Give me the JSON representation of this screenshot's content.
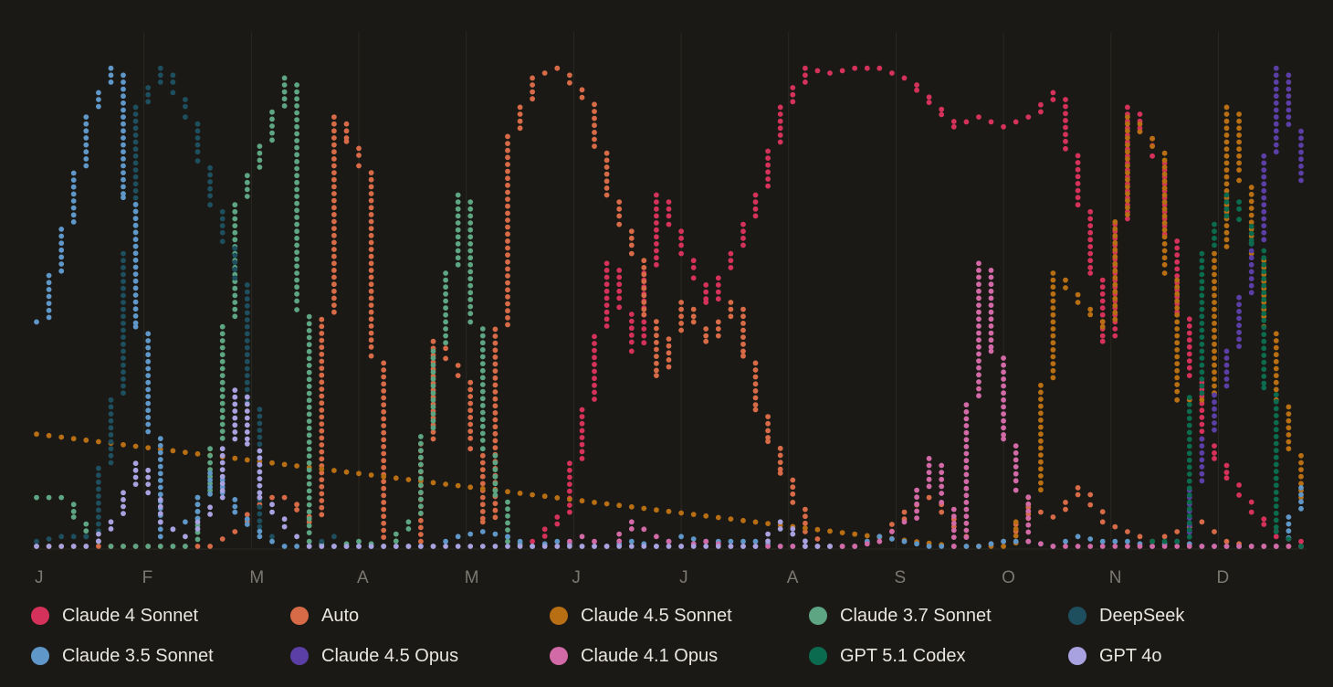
{
  "chart_data": {
    "type": "scatter",
    "title": "",
    "xlabel": "",
    "ylabel": "",
    "x_ticks": [
      "J",
      "F",
      "M",
      "A",
      "M",
      "J",
      "J",
      "A",
      "S",
      "O",
      "N",
      "D"
    ],
    "x_unit": "week of year (1-52)",
    "y_unit": "share (%)",
    "ylim": [
      0,
      100
    ],
    "grid": "vertical",
    "legend_position": "bottom",
    "series": [
      {
        "name": "Claude 4 Sonnet",
        "color": "#d4325a",
        "x": [
          21,
          22,
          23,
          24,
          25,
          26,
          27,
          28,
          29,
          30,
          31,
          32,
          33,
          34,
          35,
          36,
          37,
          38,
          39,
          40,
          41,
          42,
          43,
          44,
          45,
          46,
          47,
          48,
          49,
          50,
          51,
          52
        ],
        "y": [
          1,
          6,
          28,
          58,
          40,
          72,
          60,
          50,
          60,
          72,
          90,
          98,
          97,
          98,
          98,
          96,
          91,
          86,
          88,
          86,
          88,
          93,
          70,
          42,
          90,
          80,
          48,
          22,
          14,
          7,
          2,
          1
        ]
      },
      {
        "name": "Auto",
        "color": "#d86b47",
        "x": [
          1,
          2,
          3,
          4,
          5,
          6,
          7,
          8,
          9,
          10,
          11,
          12,
          13,
          14,
          15,
          16,
          17,
          18,
          19,
          20,
          21,
          22,
          23,
          24,
          25,
          26,
          27,
          28,
          29,
          30,
          31,
          32,
          33,
          34,
          35,
          36,
          37,
          38,
          39,
          40,
          41,
          42,
          43,
          44,
          45,
          46,
          47,
          48,
          49,
          50,
          51,
          52
        ],
        "y": [
          0,
          0,
          0,
          0,
          0,
          0,
          0,
          0,
          3,
          10,
          10,
          5,
          88,
          78,
          0,
          0,
          42,
          35,
          5,
          84,
          96,
          98,
          92,
          72,
          60,
          35,
          50,
          42,
          50,
          28,
          15,
          3,
          0,
          0,
          2,
          7,
          10,
          4,
          0,
          1,
          8,
          6,
          12,
          5,
          3,
          1,
          3,
          5,
          1,
          0,
          0,
          0
        ]
      },
      {
        "name": "Claude 4.5 Sonnet",
        "color": "#b86e12",
        "x": [
          1,
          38,
          39,
          40,
          41,
          42,
          43,
          44,
          45,
          46,
          47,
          48,
          49,
          50,
          51,
          52
        ],
        "y": [
          23,
          0,
          0,
          0,
          10,
          56,
          50,
          45,
          88,
          82,
          30,
          30,
          90,
          60,
          30,
          10
        ]
      },
      {
        "name": "Claude 3.7 Sonnet",
        "color": "#5ea583",
        "x": [
          1,
          2,
          3,
          4,
          5,
          6,
          7,
          8,
          9,
          10,
          11,
          12,
          13,
          14,
          15,
          16,
          17,
          18,
          19,
          20,
          21
        ],
        "y": [
          10,
          10,
          2,
          0,
          0,
          0,
          0,
          20,
          70,
          82,
          96,
          1,
          0,
          1,
          0,
          5,
          40,
          72,
          20,
          1,
          0
        ]
      },
      {
        "name": "DeepSeek",
        "color": "#1e4f5e",
        "x": [
          1,
          2,
          3,
          4,
          5,
          6,
          7,
          8,
          9,
          10,
          11,
          12,
          13
        ],
        "y": [
          1,
          2,
          2,
          30,
          90,
          98,
          88,
          70,
          55,
          4,
          0,
          0,
          2
        ]
      },
      {
        "name": "Claude 3.5 Sonnet",
        "color": "#5e97c8",
        "x": [
          1,
          2,
          3,
          4,
          5,
          6,
          7,
          8,
          9,
          10,
          11,
          12,
          13,
          14,
          15,
          16,
          17,
          18,
          19,
          20,
          21,
          22,
          23,
          24,
          25,
          26,
          27,
          28,
          29,
          30,
          31,
          32,
          33,
          34,
          35,
          36,
          37,
          38,
          39,
          40,
          41,
          42,
          43,
          44,
          45,
          46,
          47,
          48,
          49,
          50,
          51,
          52
        ],
        "y": [
          46,
          65,
          88,
          98,
          45,
          2,
          5,
          15,
          7,
          2,
          0,
          0,
          0,
          0,
          0,
          0,
          0,
          2,
          3,
          2,
          0,
          1,
          0,
          0,
          1,
          0,
          2,
          1,
          1,
          1,
          0,
          0,
          0,
          0,
          2,
          1,
          0,
          0,
          0,
          1,
          1,
          0,
          2,
          1,
          1,
          0,
          1,
          0,
          0,
          0,
          0,
          12
        ]
      },
      {
        "name": "Claude 4.5 Opus",
        "color": "#5b3fa6",
        "x": [
          47,
          48,
          49,
          50,
          51,
          52
        ],
        "y": [
          1,
          22,
          40,
          62,
          98,
          75
        ]
      },
      {
        "name": "Claude 4.1 Opus",
        "color": "#d16aa6",
        "x": [
          22,
          23,
          24,
          25,
          26,
          27,
          28,
          29,
          30,
          31,
          32,
          33,
          34,
          35,
          36,
          37,
          38,
          39,
          40,
          41,
          42,
          43,
          44,
          45,
          46,
          47,
          48,
          49,
          50,
          51,
          52
        ],
        "y": [
          0,
          2,
          0,
          5,
          2,
          0,
          1,
          0,
          0,
          0,
          0,
          0,
          0,
          1,
          5,
          18,
          0,
          58,
          22,
          1,
          0,
          0,
          0,
          0,
          0,
          0,
          0,
          0,
          0,
          0,
          0
        ]
      },
      {
        "name": "GPT 5.1 Codex",
        "color": "#0b6b4e",
        "x": [
          46,
          47,
          48,
          49,
          50,
          51,
          52
        ],
        "y": [
          1,
          1,
          60,
          72,
          62,
          3,
          0
        ]
      },
      {
        "name": "GPT 4o",
        "color": "#a9a2e0",
        "x": [
          1,
          2,
          3,
          4,
          5,
          6,
          7,
          8,
          9,
          10,
          11,
          12,
          13,
          14,
          15,
          16,
          17,
          18,
          19,
          20,
          21,
          22,
          23,
          24,
          25,
          26,
          27,
          28,
          29,
          30,
          31,
          32,
          33
        ],
        "y": [
          0,
          0,
          0,
          5,
          17,
          5,
          2,
          8,
          32,
          10,
          4,
          0,
          0,
          0,
          0,
          0,
          0,
          0,
          0,
          0,
          0,
          0,
          0,
          0,
          0,
          0,
          0,
          0,
          0,
          0,
          5,
          0,
          0
        ]
      }
    ]
  }
}
